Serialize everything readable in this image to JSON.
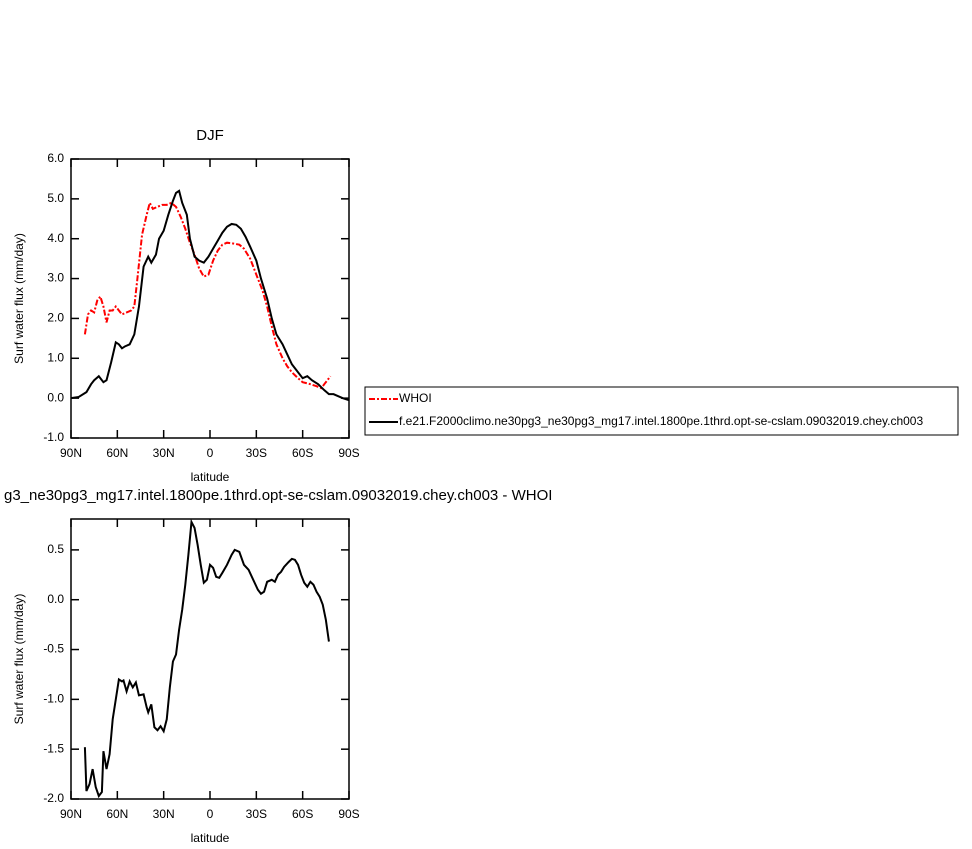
{
  "chart_data": [
    {
      "type": "line",
      "title": "DJF",
      "xlabel": "latitude",
      "ylabel": "Surf water flux (mm/day)",
      "xlim": [
        90,
        -90
      ],
      "xticks": [
        {
          "value": 90,
          "label": "90N"
        },
        {
          "value": 60,
          "label": "60N"
        },
        {
          "value": 30,
          "label": "30N"
        },
        0,
        {
          "value": -30,
          "label": "30S"
        },
        {
          "value": -60,
          "label": "60S"
        },
        {
          "value": -90,
          "label": "90S"
        }
      ],
      "ylim": [
        -1.0,
        6.0
      ],
      "yticks": [
        {
          "value": -1,
          "label": "-1.0"
        },
        {
          "value": 0,
          "label": "0.0"
        },
        {
          "value": 1,
          "label": "1.0"
        },
        {
          "value": 2,
          "label": "2.0"
        },
        {
          "value": 3,
          "label": "3.0"
        },
        {
          "value": 4,
          "label": "4.0"
        },
        {
          "value": 5,
          "label": "5.0"
        },
        {
          "value": 6,
          "label": "6.0"
        }
      ],
      "legend": "right",
      "series": [
        {
          "name": "WHOI",
          "color": "#ff0000",
          "linestyle": "dashed",
          "x": [
            81,
            79,
            77,
            75,
            73,
            71,
            69,
            67,
            65,
            63,
            61,
            59,
            57,
            54,
            51,
            49,
            47,
            44,
            41,
            39,
            37,
            34,
            31,
            28,
            25,
            22,
            19,
            16,
            13,
            10,
            7,
            4,
            1,
            -2,
            -5,
            -8,
            -11,
            -15,
            -19,
            -22,
            -26,
            -30,
            -34,
            -37,
            -40,
            -43,
            -47,
            -50,
            -53,
            -57,
            -60,
            -65,
            -69,
            -72,
            -74,
            -76,
            -78
          ],
          "values": [
            1.6,
            2.1,
            2.2,
            2.15,
            2.45,
            2.55,
            2.3,
            1.9,
            2.2,
            2.2,
            2.3,
            2.2,
            2.1,
            2.15,
            2.2,
            2.3,
            3.0,
            4.1,
            4.6,
            4.9,
            4.75,
            4.8,
            4.85,
            4.85,
            4.9,
            4.8,
            4.55,
            4.25,
            3.9,
            3.6,
            3.25,
            3.05,
            3.1,
            3.45,
            3.7,
            3.85,
            3.9,
            3.88,
            3.85,
            3.75,
            3.5,
            3.1,
            2.7,
            2.3,
            1.8,
            1.35,
            1.0,
            0.8,
            0.65,
            0.5,
            0.4,
            0.35,
            0.3,
            0.25,
            0.35,
            0.45,
            0.55
          ]
        },
        {
          "name": "f.e21.F2000climo.ne30pg3_ne30pg3_mg17.intel.1800pe.1thrd.opt-se-cslam.09032019.chey.ch003",
          "color": "#000000",
          "linestyle": "solid",
          "x": [
            90,
            85,
            80,
            77,
            75,
            72,
            69,
            67,
            64,
            61,
            59,
            57,
            55,
            52,
            49,
            46,
            43,
            40,
            38,
            35,
            33,
            30,
            27,
            24,
            22,
            20,
            18,
            15,
            13,
            10,
            7,
            4,
            1,
            -2,
            -5,
            -8,
            -11,
            -14,
            -17,
            -20,
            -23,
            -26,
            -30,
            -33,
            -37,
            -40,
            -43,
            -47,
            -50,
            -53,
            -57,
            -60,
            -63,
            -66,
            -70,
            -74,
            -77,
            -80,
            -83,
            -86,
            -90
          ],
          "values": [
            0.0,
            0.03,
            0.15,
            0.35,
            0.45,
            0.55,
            0.4,
            0.45,
            0.9,
            1.4,
            1.35,
            1.25,
            1.3,
            1.35,
            1.6,
            2.3,
            3.3,
            3.55,
            3.4,
            3.6,
            4.0,
            4.2,
            4.6,
            4.95,
            5.15,
            5.2,
            4.9,
            4.6,
            4.0,
            3.55,
            3.45,
            3.4,
            3.55,
            3.75,
            3.95,
            4.15,
            4.3,
            4.37,
            4.35,
            4.25,
            4.05,
            3.8,
            3.45,
            3.0,
            2.5,
            2.0,
            1.6,
            1.35,
            1.1,
            0.85,
            0.65,
            0.5,
            0.55,
            0.45,
            0.35,
            0.2,
            0.1,
            0.1,
            0.05,
            0.0,
            -0.05
          ]
        }
      ]
    },
    {
      "type": "line",
      "title": "g3_ne30pg3_mg17.intel.1800pe.1thrd.opt-se-cslam.09032019.chey.ch003 - WHOI",
      "xlabel": "latitude",
      "ylabel": "Surf water flux (mm/day)",
      "xlim": [
        90,
        -90
      ],
      "xticks": [
        {
          "value": 90,
          "label": "90N"
        },
        {
          "value": 60,
          "label": "60N"
        },
        {
          "value": 30,
          "label": "30N"
        },
        0,
        {
          "value": -30,
          "label": "30S"
        },
        {
          "value": -60,
          "label": "60S"
        },
        {
          "value": -90,
          "label": "90S"
        }
      ],
      "ylim": [
        -2.0,
        0.81
      ],
      "yticks": [
        {
          "value": -2,
          "label": "-2.0"
        },
        -1.5,
        {
          "value": -1,
          "label": "-1.0"
        },
        -0.5,
        {
          "value": 0,
          "label": "0.0"
        },
        0.5
      ],
      "series": [
        {
          "color": "#000000",
          "linestyle": "solid",
          "x": [
            81,
            80,
            78,
            76,
            74,
            72,
            70,
            69,
            67,
            65,
            63,
            61,
            59,
            57,
            56,
            54,
            52,
            50,
            48,
            46,
            43,
            41,
            40,
            38,
            36,
            34,
            32,
            30,
            28,
            26,
            24,
            22,
            20,
            18,
            16,
            14,
            12,
            10,
            8,
            6,
            4,
            2,
            0,
            -2,
            -4,
            -6,
            -8,
            -11,
            -14,
            -16,
            -19,
            -22,
            -25,
            -28,
            -31,
            -33,
            -35,
            -37,
            -40,
            -42,
            -44,
            -46,
            -48,
            -51,
            -53,
            -55,
            -57,
            -59,
            -61,
            -63,
            -65,
            -67,
            -69,
            -71,
            -73,
            -75,
            -77
          ],
          "values": [
            -1.48,
            -1.92,
            -1.85,
            -1.7,
            -1.88,
            -1.97,
            -1.93,
            -1.52,
            -1.7,
            -1.55,
            -1.2,
            -1.0,
            -0.8,
            -0.82,
            -0.81,
            -0.92,
            -0.82,
            -0.88,
            -0.83,
            -0.96,
            -0.95,
            -1.08,
            -1.13,
            -1.05,
            -1.28,
            -1.31,
            -1.27,
            -1.32,
            -1.2,
            -0.88,
            -0.62,
            -0.55,
            -0.3,
            -0.1,
            0.15,
            0.45,
            0.78,
            0.72,
            0.55,
            0.35,
            0.17,
            0.2,
            0.35,
            0.32,
            0.23,
            0.22,
            0.27,
            0.35,
            0.45,
            0.5,
            0.48,
            0.35,
            0.3,
            0.2,
            0.1,
            0.06,
            0.08,
            0.18,
            0.2,
            0.18,
            0.25,
            0.28,
            0.33,
            0.38,
            0.41,
            0.4,
            0.35,
            0.25,
            0.17,
            0.13,
            0.18,
            0.15,
            0.08,
            0.03,
            -0.05,
            -0.2,
            -0.42
          ]
        }
      ]
    }
  ]
}
